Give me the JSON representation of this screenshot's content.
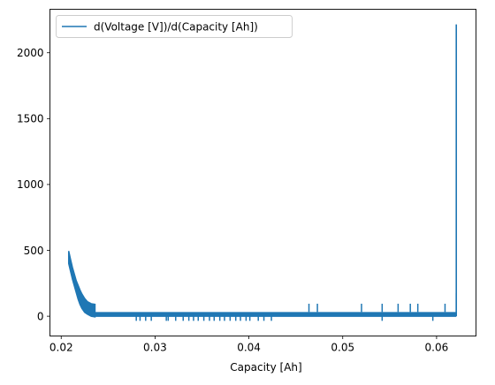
{
  "chart_data": {
    "type": "line",
    "title": "",
    "xlabel": "Capacity [Ah]",
    "ylabel": "",
    "xlim": [
      0.0188,
      0.0642
    ],
    "ylim": [
      -150,
      2330
    ],
    "x_ticks": [
      0.02,
      0.03,
      0.04,
      0.05,
      0.06
    ],
    "x_tick_labels": [
      "0.02",
      "0.03",
      "0.04",
      "0.05",
      "0.06"
    ],
    "y_ticks": [
      0,
      500,
      1000,
      1500,
      2000
    ],
    "y_tick_labels": [
      "0",
      "500",
      "1000",
      "1500",
      "2000"
    ],
    "grid": false,
    "legend": {
      "position": "upper-left",
      "entries": [
        "d(Voltage [V])/d(Capacity [Ah])"
      ]
    },
    "series": [
      {
        "name": "d(Voltage [V])/d(Capacity [Ah])",
        "color": "#1f77b4",
        "envelope": {
          "x": [
            0.0208,
            0.021,
            0.0212,
            0.0214,
            0.0216,
            0.0218,
            0.022,
            0.0222,
            0.0225,
            0.0228,
            0.0232,
            0.0236
          ],
          "upper": [
            495,
            430,
            370,
            320,
            270,
            235,
            200,
            170,
            135,
            110,
            95,
            90
          ],
          "lower": [
            400,
            340,
            280,
            230,
            180,
            130,
            90,
            60,
            30,
            15,
            0,
            -5
          ]
        },
        "band": {
          "x_start": 0.0236,
          "x_end": 0.0621,
          "upper": 32,
          "lower": -5
        },
        "spikes_down": [
          {
            "x": 0.028,
            "y": -35
          },
          {
            "x": 0.0284,
            "y": -35
          },
          {
            "x": 0.029,
            "y": -35
          },
          {
            "x": 0.0296,
            "y": -35
          },
          {
            "x": 0.0312,
            "y": -35
          },
          {
            "x": 0.0314,
            "y": -35
          },
          {
            "x": 0.0322,
            "y": -35
          },
          {
            "x": 0.033,
            "y": -35
          },
          {
            "x": 0.0336,
            "y": -35
          },
          {
            "x": 0.0341,
            "y": -35
          },
          {
            "x": 0.0346,
            "y": -35
          },
          {
            "x": 0.0352,
            "y": -35
          },
          {
            "x": 0.0358,
            "y": -35
          },
          {
            "x": 0.0363,
            "y": -35
          },
          {
            "x": 0.0369,
            "y": -35
          },
          {
            "x": 0.0374,
            "y": -35
          },
          {
            "x": 0.038,
            "y": -35
          },
          {
            "x": 0.0386,
            "y": -35
          },
          {
            "x": 0.0391,
            "y": -35
          },
          {
            "x": 0.0397,
            "y": -35
          },
          {
            "x": 0.0401,
            "y": -35
          },
          {
            "x": 0.041,
            "y": -35
          },
          {
            "x": 0.0416,
            "y": -35
          },
          {
            "x": 0.0424,
            "y": -35
          },
          {
            "x": 0.0542,
            "y": -35
          },
          {
            "x": 0.0596,
            "y": -35
          }
        ],
        "spikes_up": [
          {
            "x": 0.0464,
            "y": 95
          },
          {
            "x": 0.0473,
            "y": 95
          },
          {
            "x": 0.052,
            "y": 95
          },
          {
            "x": 0.0542,
            "y": 95
          },
          {
            "x": 0.0559,
            "y": 95
          },
          {
            "x": 0.0572,
            "y": 95
          },
          {
            "x": 0.058,
            "y": 95
          },
          {
            "x": 0.0609,
            "y": 95
          },
          {
            "x": 0.0621,
            "y": 175
          }
        ],
        "final_spike": {
          "x": 0.0621,
          "y": 2215
        }
      }
    ]
  }
}
